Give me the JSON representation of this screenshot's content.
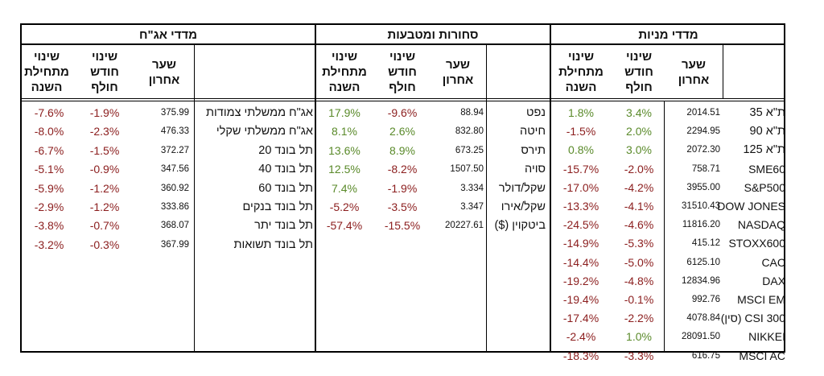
{
  "sections": {
    "stocks": {
      "title": "מדדי מניות",
      "headers": {
        "last": "שער\nאחרון",
        "month": "שינוי\nחודש\nחולף",
        "ytd": "שינוי\nמתחילת\nהשנה"
      },
      "rows": [
        {
          "name": "ת\"א 35",
          "last": "2014.51",
          "month": "3.4%",
          "ytd": "1.8%"
        },
        {
          "name": "ת\"א 90",
          "last": "2294.95",
          "month": "2.0%",
          "ytd": "-1.5%"
        },
        {
          "name": "ת\"א 125",
          "last": "2072.30",
          "month": "3.0%",
          "ytd": "0.8%"
        },
        {
          "name": "SME60",
          "last": "758.71",
          "month": "-2.0%",
          "ytd": "-15.7%"
        },
        {
          "name": "S&P500",
          "last": "3955.00",
          "month": "-4.2%",
          "ytd": "-17.0%"
        },
        {
          "name": "DOW JONES",
          "last": "31510.43",
          "month": "-4.1%",
          "ytd": "-13.3%"
        },
        {
          "name": "NASDAQ",
          "last": "11816.20",
          "month": "-4.6%",
          "ytd": "-24.5%"
        },
        {
          "name": "STOXX600",
          "last": "415.12",
          "month": "-5.3%",
          "ytd": "-14.9%"
        },
        {
          "name": "CAC",
          "last": "6125.10",
          "month": "-5.0%",
          "ytd": "-14.4%"
        },
        {
          "name": "DAX",
          "last": "12834.96",
          "month": "-4.8%",
          "ytd": "-19.2%"
        },
        {
          "name": "MSCI EM",
          "last": "992.76",
          "month": "-0.1%",
          "ytd": "-19.4%"
        },
        {
          "name": "CSI 300 (סין)",
          "last": "4078.84",
          "month": "-2.2%",
          "ytd": "-17.4%"
        },
        {
          "name": "NIKKEI",
          "last": "28091.50",
          "month": "1.0%",
          "ytd": "-2.4%"
        },
        {
          "name": "MSCI AC",
          "last": "616.75",
          "month": "-3.3%",
          "ytd": "-18.3%"
        }
      ]
    },
    "commodities": {
      "title": "סחורות ומטבעות",
      "headers": {
        "last": "שער\nאחרון",
        "month": "שינוי\nחודש\nחולף",
        "ytd": "שינוי\nמתחילת\nהשנה"
      },
      "rows": [
        {
          "name": "נפט",
          "last": "88.94",
          "month": "-9.6%",
          "ytd": "17.9%"
        },
        {
          "name": "חיטה",
          "last": "832.80",
          "month": "2.6%",
          "ytd": "8.1%"
        },
        {
          "name": "תירס",
          "last": "673.25",
          "month": "8.9%",
          "ytd": "13.6%"
        },
        {
          "name": "סויה",
          "last": "1507.50",
          "month": "-8.2%",
          "ytd": "12.5%"
        },
        {
          "name": "שקל/דולר",
          "last": "3.334",
          "month": "-1.9%",
          "ytd": "7.4%"
        },
        {
          "name": "שקל/אירו",
          "last": "3.347",
          "month": "-3.5%",
          "ytd": "-5.2%"
        },
        {
          "name": "ביטקוין ($)",
          "last": "20227.61",
          "month": "-15.5%",
          "ytd": "-57.4%"
        }
      ]
    },
    "bonds": {
      "title": "מדדי אג\"ח",
      "headers": {
        "last": "שער\nאחרון",
        "month": "שינוי\nחודש\nחולף",
        "ytd": "שינוי\nמתחילת\nהשנה"
      },
      "rows": [
        {
          "name": "אג\"ח ממשלתי צמודות",
          "last": "375.99",
          "month": "-1.9%",
          "ytd": "-7.6%"
        },
        {
          "name": "אג\"ח ממשלתי שקלי",
          "last": "476.33",
          "month": "-2.3%",
          "ytd": "-8.0%"
        },
        {
          "name": "תל בונד 20",
          "last": "372.27",
          "month": "-1.5%",
          "ytd": "-6.7%"
        },
        {
          "name": "תל בונד 40",
          "last": "347.56",
          "month": "-0.9%",
          "ytd": "-5.1%"
        },
        {
          "name": "תל בונד 60",
          "last": "360.92",
          "month": "-1.2%",
          "ytd": "-5.9%"
        },
        {
          "name": "תל בונד בנקים",
          "last": "333.86",
          "month": "-1.2%",
          "ytd": "-2.9%"
        },
        {
          "name": "תל בונד יתר",
          "last": "368.07",
          "month": "-0.7%",
          "ytd": "-3.8%"
        },
        {
          "name": "תל בונד תשואות",
          "last": "367.99",
          "month": "-0.3%",
          "ytd": "-3.2%"
        }
      ]
    }
  },
  "colors": {
    "positive": "#5a8a2a",
    "negative": "#8b1d1d"
  }
}
